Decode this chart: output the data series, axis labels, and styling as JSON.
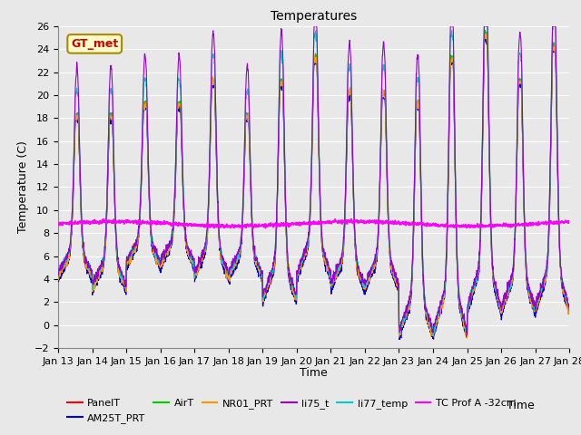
{
  "title": "Temperatures",
  "xlabel": "Time",
  "ylabel": "Temperature (C)",
  "ylim": [
    -2,
    26
  ],
  "x_tick_labels": [
    "Jan 13",
    "Jan 14",
    "Jan 15",
    "Jan 16",
    "Jan 17",
    "Jan 18",
    "Jan 19",
    "Jan 20",
    "Jan 21",
    "Jan 22",
    "Jan 23",
    "Jan 24",
    "Jan 25",
    "Jan 26",
    "Jan 27",
    "Jan 28"
  ],
  "annotation_text": "GT_met",
  "annotation_color": "#cc0000",
  "annotation_bg": "#ffffcc",
  "annotation_edge": "#aa8800",
  "series_colors": {
    "PanelT": "#ff0000",
    "AM25T_PRT": "#0000cc",
    "AirT": "#00cc00",
    "NR01_PRT": "#ff9900",
    "li75_t": "#9900cc",
    "li77_temp": "#00cccc",
    "TC Prof A -32cm": "#ff00ff"
  },
  "plot_bg": "#e8e8e8",
  "fig_bg": "#e8e8e8",
  "grid_color": "#ffffff",
  "n_points": 2000,
  "tc_prof_mean": 8.8,
  "figsize": [
    6.4,
    4.8
  ],
  "dpi": 100
}
